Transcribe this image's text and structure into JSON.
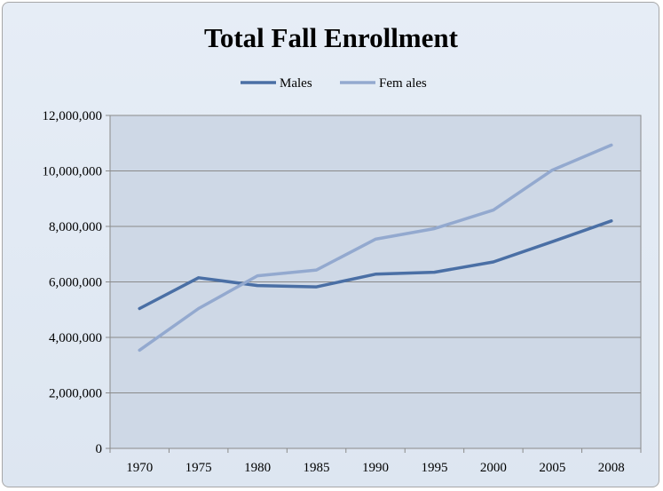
{
  "colors": {
    "plot_bg": "#ced8e6",
    "grid": "#8a8a8a",
    "males": "#4a6fa5",
    "females": "#93a9cf"
  },
  "chart_data": {
    "type": "line",
    "title": "Total Fall Enrollment",
    "xlabel": "",
    "ylabel": "",
    "categories": [
      "1970",
      "1975",
      "1980",
      "1985",
      "1990",
      "1995",
      "2000",
      "2005",
      "2008"
    ],
    "ylim": [
      0,
      12000000
    ],
    "yticks": [
      0,
      2000000,
      4000000,
      6000000,
      8000000,
      10000000,
      12000000
    ],
    "ytick_labels": [
      "0",
      "2,000,000",
      "4,000,000",
      "6,000,000",
      "8,000,000",
      "10,000,000",
      "12,000,000"
    ],
    "grid": true,
    "legend_position": "top",
    "series": [
      {
        "name": "Males",
        "color": "#4a6fa5",
        "values": [
          5040000,
          6150000,
          5870000,
          5820000,
          6280000,
          6350000,
          6720000,
          7450000,
          8200000
        ]
      },
      {
        "name": "Fem ales",
        "color": "#93a9cf",
        "values": [
          3540000,
          5040000,
          6220000,
          6430000,
          7540000,
          7920000,
          8590000,
          10030000,
          10930000
        ]
      }
    ]
  }
}
